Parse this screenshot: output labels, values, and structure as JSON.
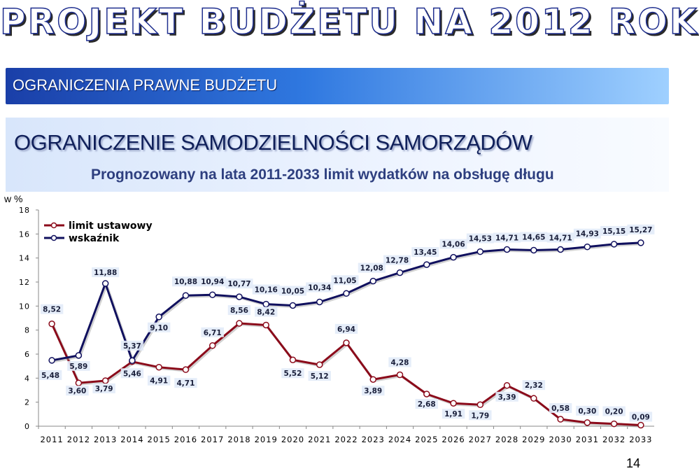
{
  "header": {
    "title": "PROJEKT BUDŻETU NA 2012 ROK",
    "section": "OGRANICZENIA PRAWNE BUDŻETU",
    "subtitle": "OGRANICZENIE SAMODZIELNOŚCI SAMORZĄDÓW"
  },
  "page_number": "14",
  "chart_data": {
    "type": "line",
    "title": "Prognozowany na lata 2011-2033 limit wydatków na obsługę długu",
    "ylabel": "w %",
    "xlabel": "",
    "ylim": [
      0,
      18
    ],
    "yticks": [
      "0",
      "2",
      "4",
      "6",
      "8",
      "10",
      "12",
      "14",
      "16",
      "18"
    ],
    "grid": false,
    "legend_position": "top-left",
    "categories": [
      "2011",
      "2012",
      "2013",
      "2014",
      "2015",
      "2016",
      "2017",
      "2018",
      "2019",
      "2020",
      "2021",
      "2022",
      "2023",
      "2024",
      "2025",
      "2026",
      "2027",
      "2028",
      "2029",
      "2030",
      "2031",
      "2032",
      "2033"
    ],
    "series": [
      {
        "name": "limit ustawowy",
        "color": "#8b0a1a",
        "values": [
          8.52,
          3.6,
          3.79,
          5.37,
          4.91,
          4.71,
          6.71,
          8.56,
          8.42,
          5.52,
          5.12,
          6.94,
          3.89,
          4.28,
          2.68,
          1.91,
          1.79,
          3.39,
          2.32,
          0.58,
          0.3,
          0.2,
          0.09
        ],
        "labels": [
          "8,52",
          "3,60",
          "3,79",
          "5,37",
          "4,91",
          "4,71",
          "6,71",
          "8,56",
          "8,42",
          "5,52",
          "5,12",
          "6,94",
          "3,89",
          "4,28",
          "2,68",
          "1,91",
          "1,79",
          "3,39",
          "2,32",
          "0,58",
          "0,30",
          "0,20",
          "0,09"
        ]
      },
      {
        "name": "wskaźnik",
        "color": "#10105e",
        "values": [
          5.48,
          5.89,
          11.88,
          5.46,
          9.1,
          10.88,
          10.94,
          10.77,
          10.16,
          10.05,
          10.34,
          11.05,
          12.08,
          12.78,
          13.45,
          14.06,
          14.53,
          14.71,
          14.65,
          14.71,
          14.93,
          15.15,
          15.27
        ],
        "labels": [
          "5,48",
          "5,89",
          "11,88",
          "5,46",
          "9,10",
          "10,88",
          "10,94",
          "10,77",
          "10,16",
          "10,05",
          "10,34",
          "11,05",
          "12,08",
          "12,78",
          "13,45",
          "14,06",
          "14,53",
          "14,71",
          "14,65",
          "14,71",
          "14,93",
          "15,15",
          "15,27"
        ]
      }
    ]
  }
}
